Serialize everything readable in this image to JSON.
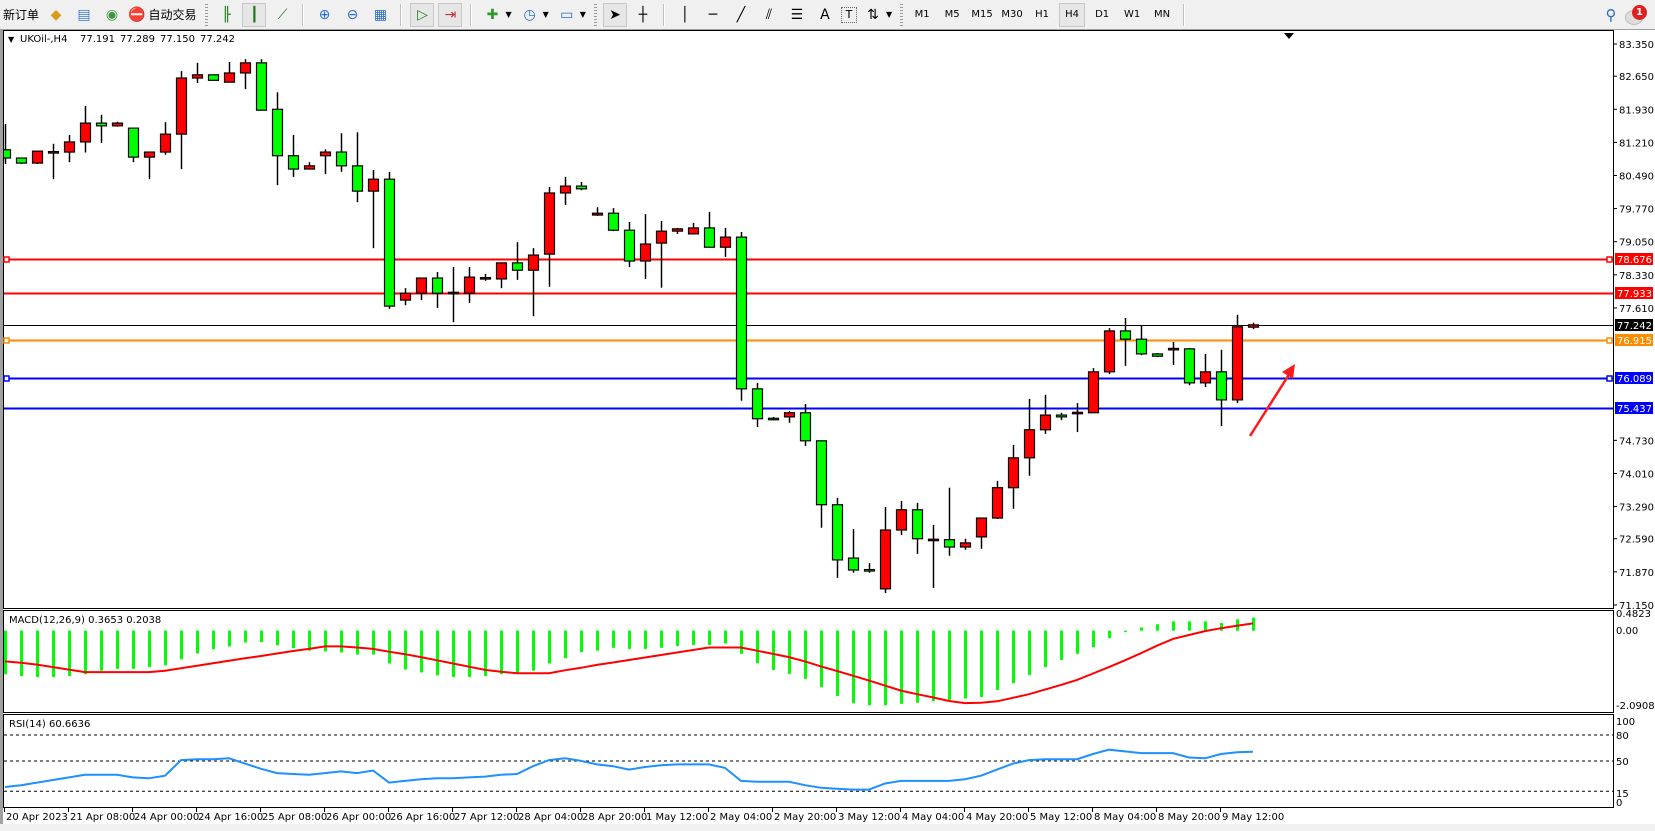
{
  "toolbar": {
    "new_order_label": "新订单",
    "auto_trading_label": "自动交易",
    "icons": {
      "market_watch": "diamond-icon",
      "navigator": "navigator-icon",
      "signals": "signal-icon",
      "auto_trading": "auto-trading-icon",
      "bar_chart": "bar-chart-icon",
      "candlestick": "candlestick-icon",
      "line_chart": "line-chart-icon",
      "zoom_in": "zoom-in-icon",
      "zoom_out": "zoom-out-icon",
      "tile": "tile-windows-icon",
      "auto_scroll": "auto-scroll-icon",
      "chart_shift": "chart-shift-icon",
      "indicators": "indicators-icon",
      "periods": "clock-icon",
      "templates": "template-icon",
      "cursor": "cursor-icon",
      "crosshair": "crosshair-icon",
      "vertical_line": "vertical-line-icon",
      "horizontal_line": "horizontal-line-icon",
      "trendline": "trendline-icon",
      "channel": "equidistant-channel-icon",
      "fibonacci": "fibonacci-icon",
      "text": "text-icon",
      "text_label": "text-label-icon",
      "arrows": "arrows-icon",
      "search": "search-icon",
      "notifications": "notification-icon"
    },
    "text_tool_label": "A",
    "label_tool_label": "T",
    "timeframes": [
      "M1",
      "M5",
      "M15",
      "M30",
      "H1",
      "H4",
      "D1",
      "W1",
      "MN"
    ],
    "active_timeframe": "H4",
    "notification_count": "1"
  },
  "chart": {
    "symbol": "UKOil-,H4",
    "open": "77.191",
    "high": "77.289",
    "low": "77.150",
    "close": "77.242",
    "macd_label": "MACD(12,26,9) 0.3653 0.2038",
    "rsi_label": "RSI(14) 60.6636"
  },
  "colors": {
    "bull_candle": "#ff0000",
    "bear_candle": "#00ff00",
    "macd_histogram": "#00ff00",
    "macd_signal": "#ff0000",
    "rsi_line": "#1e90ff",
    "resistance": "#ff0000",
    "pivot": "#ff8c00",
    "support": "#0000ff",
    "current_price": "#000000"
  },
  "chart_data": [
    {
      "type": "candlestick",
      "title": "UKOil-,H4",
      "ylim": [
        71.15,
        83.35
      ],
      "price_ticks": [
        "83.350",
        "82.650",
        "81.930",
        "81.210",
        "80.490",
        "79.770",
        "79.050",
        "78.330",
        "77.610",
        "74.730",
        "74.010",
        "73.290",
        "72.590",
        "71.870",
        "71.150"
      ],
      "time_labels": [
        "20 Apr 2023",
        "21 Apr 08:00",
        "24 Apr 00:00",
        "24 Apr 16:00",
        "25 Apr 08:00",
        "26 Apr 00:00",
        "26 Apr 16:00",
        "27 Apr 12:00",
        "28 Apr 04:00",
        "28 Apr 20:00",
        "1 May 12:00",
        "2 May 04:00",
        "2 May 20:00",
        "3 May 12:00",
        "4 May 04:00",
        "4 May 20:00",
        "5 May 12:00",
        "8 May 04:00",
        "8 May 20:00",
        "9 May 12:00"
      ],
      "ohlc": [
        [
          81.05,
          81.61,
          80.74,
          80.87
        ],
        [
          80.87,
          80.87,
          80.74,
          80.76
        ],
        [
          80.76,
          81.02,
          80.74,
          81.02
        ],
        [
          81.0,
          81.18,
          80.41,
          81.01
        ],
        [
          81.0,
          81.37,
          80.78,
          81.22
        ],
        [
          81.22,
          82.0,
          80.99,
          81.63
        ],
        [
          81.63,
          81.81,
          81.2,
          81.57
        ],
        [
          81.57,
          81.66,
          81.55,
          81.63
        ],
        [
          81.52,
          81.52,
          80.78,
          80.89
        ],
        [
          80.89,
          81.0,
          80.41,
          81.0
        ],
        [
          81.0,
          81.65,
          80.94,
          81.39
        ],
        [
          81.39,
          82.76,
          80.63,
          82.61
        ],
        [
          82.61,
          82.94,
          82.5,
          82.68
        ],
        [
          82.68,
          82.68,
          82.56,
          82.56
        ],
        [
          82.52,
          82.96,
          82.52,
          82.72
        ],
        [
          82.72,
          83.02,
          82.37,
          82.94
        ],
        [
          82.94,
          83.02,
          81.91,
          81.91
        ],
        [
          81.93,
          82.3,
          80.28,
          80.92
        ],
        [
          80.92,
          81.37,
          80.46,
          80.63
        ],
        [
          80.63,
          80.78,
          80.63,
          80.7
        ],
        [
          80.92,
          81.06,
          80.52,
          81.0
        ],
        [
          81.0,
          81.41,
          80.57,
          80.7
        ],
        [
          80.7,
          81.43,
          79.91,
          80.15
        ],
        [
          80.15,
          80.61,
          78.91,
          80.41
        ],
        [
          80.41,
          80.57,
          77.59,
          77.65
        ],
        [
          77.78,
          78.04,
          77.67,
          77.93
        ],
        [
          77.93,
          78.26,
          77.78,
          78.26
        ],
        [
          78.26,
          78.39,
          77.61,
          77.93
        ],
        [
          77.93,
          78.5,
          77.3,
          77.95
        ],
        [
          77.93,
          78.5,
          77.72,
          78.28
        ],
        [
          78.25,
          78.35,
          78.2,
          78.27
        ],
        [
          78.24,
          78.59,
          78.04,
          78.59
        ],
        [
          78.59,
          79.04,
          78.22,
          78.43
        ],
        [
          78.43,
          78.91,
          77.43,
          78.76
        ],
        [
          78.78,
          80.24,
          78.07,
          80.11
        ],
        [
          80.11,
          80.46,
          79.85,
          80.26
        ],
        [
          80.26,
          80.35,
          80.17,
          80.2
        ],
        [
          79.63,
          79.8,
          79.61,
          79.67
        ],
        [
          79.67,
          79.78,
          79.28,
          79.3
        ],
        [
          79.3,
          79.48,
          78.5,
          78.63
        ],
        [
          78.63,
          79.65,
          78.24,
          79.0
        ],
        [
          79.02,
          79.5,
          78.05,
          79.28
        ],
        [
          79.28,
          79.35,
          79.22,
          79.33
        ],
        [
          79.22,
          79.46,
          79.22,
          79.35
        ],
        [
          79.35,
          79.7,
          78.93,
          78.93
        ],
        [
          78.93,
          79.35,
          78.72,
          79.15
        ],
        [
          79.15,
          79.26,
          75.59,
          75.85
        ],
        [
          75.85,
          75.98,
          75.02,
          75.2
        ],
        [
          75.21,
          75.24,
          75.17,
          75.2
        ],
        [
          75.24,
          75.37,
          75.11,
          75.33
        ],
        [
          75.33,
          75.52,
          74.61,
          74.72
        ],
        [
          74.72,
          74.72,
          72.83,
          73.33
        ],
        [
          73.33,
          73.48,
          71.74,
          72.13
        ],
        [
          72.17,
          72.8,
          71.85,
          71.91
        ],
        [
          71.92,
          72.06,
          71.85,
          71.91
        ],
        [
          71.5,
          73.28,
          71.41,
          72.78
        ],
        [
          72.78,
          73.41,
          72.67,
          73.22
        ],
        [
          73.22,
          73.37,
          72.26,
          72.59
        ],
        [
          72.57,
          72.89,
          71.52,
          72.58
        ],
        [
          72.57,
          73.7,
          72.22,
          72.41
        ],
        [
          72.41,
          72.59,
          72.35,
          72.5
        ],
        [
          72.63,
          73.04,
          72.37,
          73.04
        ],
        [
          73.04,
          73.85,
          73.02,
          73.7
        ],
        [
          73.7,
          74.63,
          73.24,
          74.35
        ],
        [
          74.35,
          75.63,
          73.96,
          74.96
        ],
        [
          74.96,
          75.72,
          74.87,
          75.28
        ],
        [
          75.28,
          75.33,
          75.17,
          75.24
        ],
        [
          75.33,
          75.54,
          74.91,
          75.34
        ],
        [
          75.33,
          76.3,
          75.33,
          76.22
        ],
        [
          76.22,
          77.17,
          76.17,
          77.11
        ],
        [
          77.11,
          77.39,
          76.35,
          76.93
        ],
        [
          76.93,
          77.22,
          76.58,
          76.61
        ],
        [
          76.61,
          76.63,
          76.54,
          76.56
        ],
        [
          76.72,
          76.87,
          76.37,
          76.73
        ],
        [
          76.72,
          76.74,
          75.93,
          75.98
        ],
        [
          75.98,
          76.61,
          75.89,
          76.22
        ],
        [
          76.22,
          76.7,
          75.04,
          75.61
        ],
        [
          75.61,
          77.46,
          75.54,
          77.2
        ],
        [
          77.191,
          77.289,
          77.15,
          77.242
        ]
      ],
      "horizontal_lines": [
        {
          "value": "78.676",
          "color": "#ff0000",
          "handles": true
        },
        {
          "value": "77.933",
          "color": "#ff0000",
          "handles": false
        },
        {
          "value": "77.242",
          "color": "#000000",
          "handles": false
        },
        {
          "value": "76.915",
          "color": "#ff8c00",
          "handles": true
        },
        {
          "value": "76.089",
          "color": "#0000ff",
          "handles": true
        },
        {
          "value": "75.437",
          "color": "#0000ff",
          "handles": false
        }
      ],
      "annotations": [
        {
          "type": "arrow",
          "color": "#ff0000",
          "direction": "up-right"
        }
      ]
    },
    {
      "type": "bar",
      "title": "MACD(12,26,9) 0.3653 0.2038",
      "ylim": [
        -2.0908,
        0.4823
      ],
      "y_ticks": [
        "0.4823",
        "0.00",
        "-2.0908"
      ],
      "histogram": [
        -1.22,
        -1.27,
        -1.3,
        -1.3,
        -1.27,
        -1.22,
        -1.12,
        -1.07,
        -1.07,
        -1.02,
        -0.97,
        -0.8,
        -0.64,
        -0.52,
        -0.44,
        -0.33,
        -0.32,
        -0.41,
        -0.49,
        -0.56,
        -0.58,
        -0.61,
        -0.67,
        -0.67,
        -0.92,
        -1.09,
        -1.17,
        -1.25,
        -1.3,
        -1.3,
        -1.27,
        -1.22,
        -1.17,
        -1.12,
        -0.92,
        -0.77,
        -0.6,
        -0.56,
        -0.48,
        -0.51,
        -0.51,
        -0.48,
        -0.43,
        -0.4,
        -0.4,
        -0.36,
        -0.65,
        -0.91,
        -1.1,
        -1.21,
        -1.35,
        -1.58,
        -1.83,
        -2.03,
        -2.09,
        -2.09,
        -2.05,
        -2.02,
        -1.97,
        -1.94,
        -1.9,
        -1.86,
        -1.66,
        -1.47,
        -1.24,
        -1.02,
        -0.82,
        -0.65,
        -0.46,
        -0.21,
        -0.04,
        0.09,
        0.18,
        0.26,
        0.26,
        0.26,
        0.22,
        0.32,
        0.3653
      ],
      "signal": [
        -0.86,
        -0.9,
        -0.95,
        -1.02,
        -1.09,
        -1.16,
        -1.16,
        -1.16,
        -1.16,
        -1.16,
        -1.12,
        -1.05,
        -0.98,
        -0.91,
        -0.84,
        -0.77,
        -0.71,
        -0.64,
        -0.57,
        -0.51,
        -0.44,
        -0.44,
        -0.47,
        -0.51,
        -0.59,
        -0.66,
        -0.74,
        -0.83,
        -0.92,
        -1.01,
        -1.1,
        -1.15,
        -1.19,
        -1.19,
        -1.19,
        -1.11,
        -1.04,
        -0.96,
        -0.89,
        -0.82,
        -0.75,
        -0.68,
        -0.61,
        -0.54,
        -0.47,
        -0.47,
        -0.47,
        -0.56,
        -0.65,
        -0.74,
        -0.86,
        -1.0,
        -1.13,
        -1.26,
        -1.4,
        -1.54,
        -1.68,
        -1.78,
        -1.87,
        -1.97,
        -2.03,
        -2.02,
        -1.98,
        -1.88,
        -1.78,
        -1.65,
        -1.52,
        -1.38,
        -1.2,
        -1.02,
        -0.83,
        -0.63,
        -0.42,
        -0.23,
        -0.12,
        -0.01,
        0.07,
        0.14,
        0.2038
      ]
    },
    {
      "type": "line",
      "title": "RSI(14) 60.6636",
      "ylim": [
        0,
        100
      ],
      "y_ticks": [
        "100",
        "80",
        "50",
        "15",
        "0"
      ],
      "levels": [
        80,
        50,
        15
      ],
      "values": [
        20,
        22,
        25,
        28,
        31,
        34,
        34,
        34,
        31,
        30,
        33,
        51,
        52,
        52,
        53,
        47,
        41,
        36,
        35,
        34,
        36,
        38,
        36,
        39,
        25,
        27,
        29,
        30,
        30,
        31,
        32,
        34,
        35,
        44,
        51,
        53,
        50,
        46,
        44,
        40,
        43,
        45,
        46,
        46,
        46,
        42,
        27,
        26,
        26,
        26,
        22,
        19,
        18,
        17,
        17,
        24,
        27,
        27,
        27,
        27,
        29,
        33,
        40,
        47,
        51,
        52,
        52,
        52,
        58,
        63,
        61,
        59,
        59,
        59,
        54,
        53,
        58,
        60,
        60.6636
      ]
    }
  ]
}
